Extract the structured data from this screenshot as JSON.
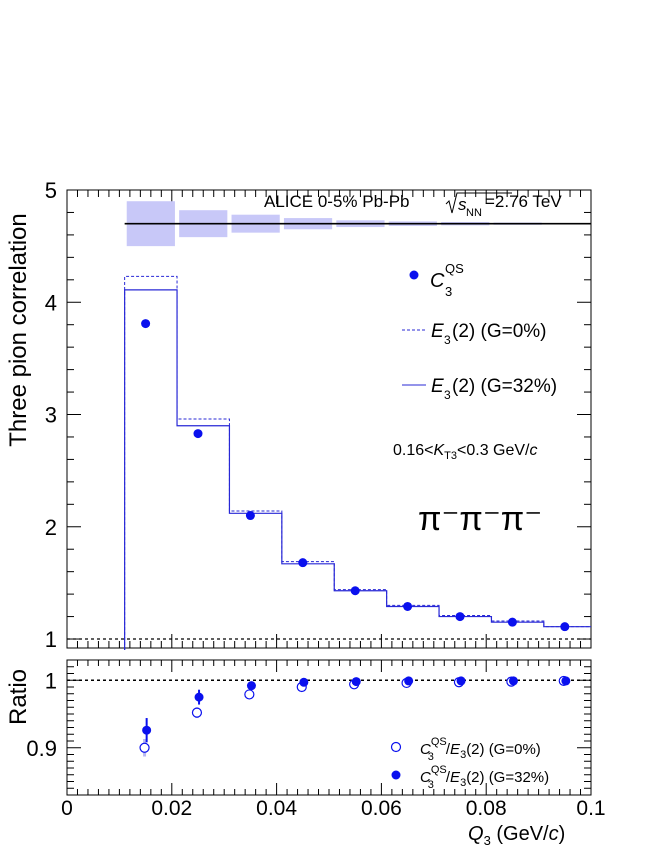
{
  "chart_data": [
    {
      "type": "line",
      "panel": "top",
      "ylabel": "Three pion correlation",
      "xlim": [
        0,
        0.1
      ],
      "ylim": [
        0.92,
        5.0
      ],
      "yticks": [
        1,
        2,
        3,
        4,
        5
      ],
      "ytick_labels": [
        "1",
        "2",
        "3",
        "4",
        "5"
      ],
      "header": {
        "pre": "ALICE 0-5% Pb-Pb ",
        "s": "s",
        "nn": "NN",
        "post": "=2.76 TeV"
      },
      "kt_label": {
        "pre": "0.16<",
        "K": "K",
        "T3": "T3",
        "post": "<0.3 GeV/",
        "c": "c"
      },
      "particle_label": "π⁻π⁻π⁻",
      "bin_edges": [
        0.011,
        0.021,
        0.031,
        0.041,
        0.051,
        0.061,
        0.071,
        0.081,
        0.091,
        0.1
      ],
      "x": [
        0.015,
        0.025,
        0.035,
        0.045,
        0.055,
        0.065,
        0.075,
        0.085,
        0.095
      ],
      "series": [
        {
          "name": "C3QS",
          "style": "markers",
          "values": [
            3.81,
            2.83,
            2.1,
            1.68,
            1.43,
            1.29,
            1.2,
            1.15,
            1.11
          ],
          "legend": {
            "main": "C",
            "sub": "3",
            "sup": "QS"
          }
        },
        {
          "name": "E3(2) (G=0%)",
          "style": "dashed-histogram",
          "values": [
            4.23,
            2.96,
            2.14,
            1.69,
            1.44,
            1.3,
            1.21,
            1.16,
            1.11
          ],
          "legend": {
            "main": "E",
            "sub": "3",
            "rest": "(2) (G=0%)"
          }
        },
        {
          "name": "E3(2) (G=32%)",
          "style": "solid-histogram",
          "values": [
            4.11,
            2.9,
            2.12,
            1.67,
            1.43,
            1.29,
            1.2,
            1.15,
            1.11
          ],
          "legend": {
            "main": "E",
            "sub": "3",
            "rest": "(2) (G=32%)"
          }
        }
      ],
      "systematics": {
        "y_center": 4.7,
        "half_heights": [
          0.2,
          0.12,
          0.08,
          0.05,
          0.03,
          0.02,
          0.015,
          0.01,
          0.005
        ]
      },
      "reference_lines": [
        1.0,
        4.7
      ]
    },
    {
      "type": "scatter",
      "panel": "bottom",
      "ylabel": "Ratio",
      "xlabel": {
        "main": "Q",
        "sub": "3",
        "post": " (GeV/",
        "c": "c",
        "close": ")"
      },
      "xlim": [
        0,
        0.1
      ],
      "ylim": [
        0.83,
        1.03
      ],
      "yticks": [
        0.9,
        1
      ],
      "ytick_labels": [
        "0.9",
        "1"
      ],
      "xticks": [
        0,
        0.02,
        0.04,
        0.06,
        0.08,
        0.1
      ],
      "xtick_labels": [
        "0",
        "0.02",
        "0.04",
        "0.06",
        "0.08",
        "0.1"
      ],
      "x": [
        0.015,
        0.025,
        0.035,
        0.045,
        0.055,
        0.065,
        0.075,
        0.085,
        0.095
      ],
      "series": [
        {
          "name": "C3QS/E3(2) (G=0%)",
          "style": "open",
          "values": [
            0.9,
            0.952,
            0.979,
            0.99,
            0.994,
            0.996,
            0.997,
            0.998,
            0.999
          ],
          "errors": [
            0.013,
            0.008,
            0.004,
            0.002,
            0.001,
            0.001,
            0.001,
            0.001,
            0.001
          ],
          "legend": {
            "c": "C",
            "c_sub": "3",
            "c_sup": "QS",
            "slash": "/",
            "e": "E",
            "e_sub": "3",
            "rest": "(2) (G=0%)"
          }
        },
        {
          "name": "C3QS/E3(2) (G=32%)",
          "style": "filled",
          "values": [
            0.926,
            0.975,
            0.992,
            0.997,
            0.998,
            0.999,
            0.999,
            0.999,
            0.999
          ],
          "errors": [
            0.018,
            0.011,
            0.006,
            0.003,
            0.002,
            0.001,
            0.001,
            0.001,
            0.001
          ],
          "legend": {
            "c": "C",
            "c_sub": "3",
            "c_sup": "QS",
            "slash": "/",
            "e": "E",
            "e_sub": "3",
            "rest": "(2) (G=32%)"
          }
        }
      ],
      "reference_lines": [
        1.0
      ]
    }
  ],
  "colors": {
    "marker": "#0a10ee",
    "line": "#2828d6",
    "band": "#c8c8f8",
    "light_error": "#b8b8f0",
    "axis": "#000000"
  }
}
